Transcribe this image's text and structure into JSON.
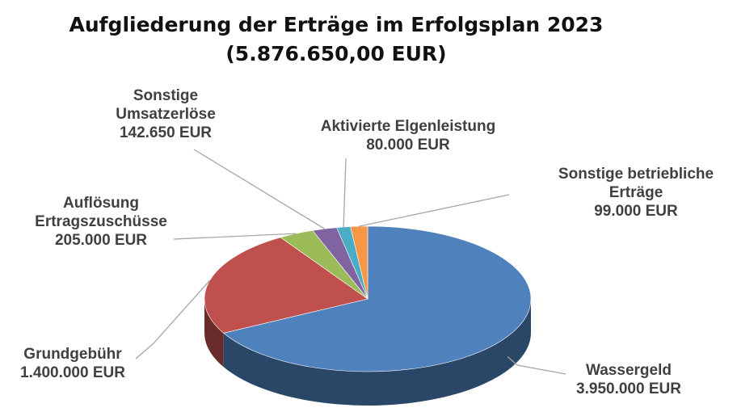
{
  "chart_data": {
    "type": "pie3d",
    "title": "Aufgliederung der Erträge im Erfolgsplan 2023",
    "subtitle": "(5.876.650,00 EUR)",
    "categories": [
      "Wassergeld",
      "Grundgebühr",
      "Auflösung Ertragszuschüsse",
      "Sonstige Umsatzerlöse",
      "Aktivierte Elgenleistung",
      "Sonstige betriebliche Erträge"
    ],
    "values": [
      3950000,
      1400000,
      205000,
      142650,
      80000,
      99000
    ],
    "value_labels": [
      "3.950.000 EUR",
      "1.400.000 EUR",
      "205.000 EUR",
      "142.650 EUR",
      "80.000 EUR",
      "99.000 EUR"
    ],
    "colors": [
      "#4f81bd",
      "#c0504d",
      "#9bbb59",
      "#8064a2",
      "#4bacc6",
      "#f79646"
    ]
  }
}
